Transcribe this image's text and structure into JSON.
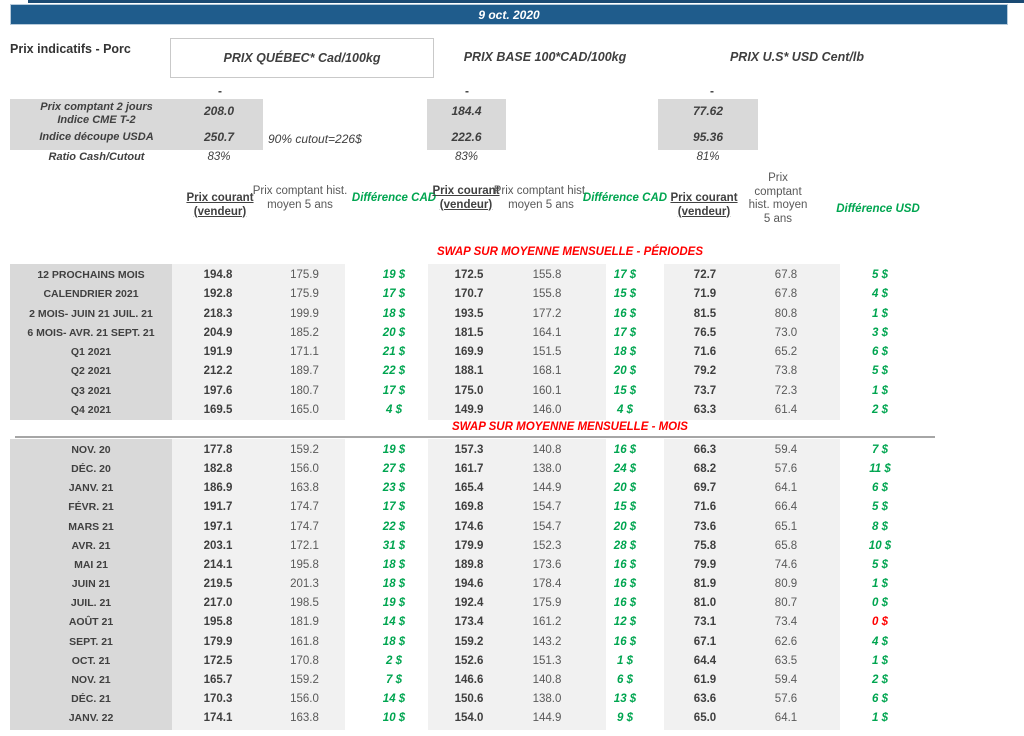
{
  "title_bar": {
    "date": "9 oct. 2020"
  },
  "page": {
    "label": "Prix indicatifs - Porc"
  },
  "groups": [
    {
      "header": "PRIX QUÉBEC* Cad/100kg"
    },
    {
      "header": "PRIX BASE 100*CAD/100kg"
    },
    {
      "header": "PRIX U.S* USD Cent/lb"
    }
  ],
  "summary": {
    "dash": "-",
    "cme_label_line1": "Prix comptant 2 jours",
    "cme_label_line2": "Indice CME T-2",
    "cme_quebec": "208.0",
    "cme_base": "184.4",
    "cme_us": "77.62",
    "usda_label": "Indice découpe USDA",
    "usda_quebec": "250.7",
    "usda_note": "90% cutout=226$",
    "usda_base": "222.6",
    "usda_us": "95.36",
    "ratio_label": "Ratio Cash/Cutout",
    "ratio_quebec": "83%",
    "ratio_base": "83%",
    "ratio_us": "81%"
  },
  "columns": {
    "current": "Prix courant (vendeur)",
    "hist": "Prix comptant hist. moyen 5 ans",
    "diff_cad": "Différence CAD",
    "diff_usd": "Différence USD"
  },
  "sections": [
    {
      "title": "SWAP SUR MOYENNE MENSUELLE - PÉRIODES",
      "rows": [
        {
          "label": "12 PROCHAINS MOIS",
          "cells": [
            "194.8",
            "175.9",
            "19 $",
            "172.5",
            "155.8",
            "17 $",
            "72.7",
            "67.8",
            "5 $"
          ],
          "neg": []
        },
        {
          "label": "CALENDRIER 2021",
          "cells": [
            "192.8",
            "175.9",
            "17 $",
            "170.7",
            "155.8",
            "15 $",
            "71.9",
            "67.8",
            "4 $"
          ],
          "neg": []
        },
        {
          "label": "2 MOIS- JUIN 21 JUIL. 21",
          "cells": [
            "218.3",
            "199.9",
            "18 $",
            "193.5",
            "177.2",
            "16 $",
            "81.5",
            "80.8",
            "1 $"
          ],
          "neg": []
        },
        {
          "label": "6 MOIS- AVR. 21 SEPT. 21",
          "cells": [
            "204.9",
            "185.2",
            "20 $",
            "181.5",
            "164.1",
            "17 $",
            "76.5",
            "73.0",
            "3 $"
          ],
          "neg": []
        },
        {
          "label": "Q1 2021",
          "cells": [
            "191.9",
            "171.1",
            "21 $",
            "169.9",
            "151.5",
            "18 $",
            "71.6",
            "65.2",
            "6 $"
          ],
          "neg": []
        },
        {
          "label": "Q2 2021",
          "cells": [
            "212.2",
            "189.7",
            "22 $",
            "188.1",
            "168.1",
            "20 $",
            "79.2",
            "73.8",
            "5 $"
          ],
          "neg": []
        },
        {
          "label": "Q3 2021",
          "cells": [
            "197.6",
            "180.7",
            "17 $",
            "175.0",
            "160.1",
            "15 $",
            "73.7",
            "72.3",
            "1 $"
          ],
          "neg": []
        },
        {
          "label": "Q4 2021",
          "cells": [
            "169.5",
            "165.0",
            "4 $",
            "149.9",
            "146.0",
            "4 $",
            "63.3",
            "61.4",
            "2 $"
          ],
          "neg": []
        }
      ]
    },
    {
      "title": "SWAP SUR MOYENNE MENSUELLE - MOIS",
      "rows": [
        {
          "label": "NOV. 20",
          "cells": [
            "177.8",
            "159.2",
            "19 $",
            "157.3",
            "140.8",
            "16 $",
            "66.3",
            "59.4",
            "7 $"
          ],
          "neg": []
        },
        {
          "label": "DÉC. 20",
          "cells": [
            "182.8",
            "156.0",
            "27 $",
            "161.7",
            "138.0",
            "24 $",
            "68.2",
            "57.6",
            "11 $"
          ],
          "neg": []
        },
        {
          "label": "JANV. 21",
          "cells": [
            "186.9",
            "163.8",
            "23 $",
            "165.4",
            "144.9",
            "20 $",
            "69.7",
            "64.1",
            "6 $"
          ],
          "neg": []
        },
        {
          "label": "FÉVR. 21",
          "cells": [
            "191.7",
            "174.7",
            "17 $",
            "169.8",
            "154.7",
            "15 $",
            "71.6",
            "66.4",
            "5 $"
          ],
          "neg": []
        },
        {
          "label": "MARS 21",
          "cells": [
            "197.1",
            "174.7",
            "22 $",
            "174.6",
            "154.7",
            "20 $",
            "73.6",
            "65.1",
            "8 $"
          ],
          "neg": []
        },
        {
          "label": "AVR. 21",
          "cells": [
            "203.1",
            "172.1",
            "31 $",
            "179.9",
            "152.3",
            "28 $",
            "75.8",
            "65.8",
            "10 $"
          ],
          "neg": []
        },
        {
          "label": "MAI 21",
          "cells": [
            "214.1",
            "195.8",
            "18 $",
            "189.8",
            "173.6",
            "16 $",
            "79.9",
            "74.6",
            "5 $"
          ],
          "neg": []
        },
        {
          "label": "JUIN 21",
          "cells": [
            "219.5",
            "201.3",
            "18 $",
            "194.6",
            "178.4",
            "16 $",
            "81.9",
            "80.9",
            "1 $"
          ],
          "neg": []
        },
        {
          "label": "JUIL. 21",
          "cells": [
            "217.0",
            "198.5",
            "19 $",
            "192.4",
            "175.9",
            "16 $",
            "81.0",
            "80.7",
            "0 $"
          ],
          "neg": []
        },
        {
          "label": "AOÛT 21",
          "cells": [
            "195.8",
            "181.9",
            "14 $",
            "173.4",
            "161.2",
            "12 $",
            "73.1",
            "73.4",
            "0 $"
          ],
          "neg": [
            8
          ]
        },
        {
          "label": "SEPT. 21",
          "cells": [
            "179.9",
            "161.8",
            "18 $",
            "159.2",
            "143.2",
            "16 $",
            "67.1",
            "62.6",
            "4 $"
          ],
          "neg": []
        },
        {
          "label": "OCT. 21",
          "cells": [
            "172.5",
            "170.8",
            "2 $",
            "152.6",
            "151.3",
            "1 $",
            "64.4",
            "63.5",
            "1 $"
          ],
          "neg": []
        },
        {
          "label": "NOV. 21",
          "cells": [
            "165.7",
            "159.2",
            "7 $",
            "146.6",
            "140.8",
            "6 $",
            "61.9",
            "59.4",
            "2 $"
          ],
          "neg": []
        },
        {
          "label": "DÉC. 21",
          "cells": [
            "170.3",
            "156.0",
            "14 $",
            "150.6",
            "138.0",
            "13 $",
            "63.6",
            "57.6",
            "6 $"
          ],
          "neg": []
        },
        {
          "label": "JANV. 22",
          "cells": [
            "174.1",
            "163.8",
            "10 $",
            "154.0",
            "144.9",
            "9 $",
            "65.0",
            "64.1",
            "1 $"
          ],
          "neg": []
        }
      ]
    }
  ],
  "colors": {
    "header_blue": "#1f5c8c",
    "positive_green": "#00a550",
    "negative_red": "#ff0000",
    "section_red": "#ff0000",
    "label_band": "#d9d9d9",
    "value_band": "#f1f1f1"
  }
}
